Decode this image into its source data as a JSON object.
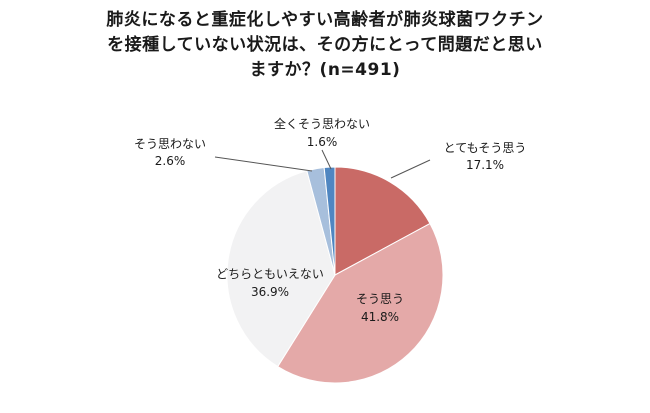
{
  "title": {
    "lines": [
      "肺炎になると重症化しやすい高齢者が肺炎球菌ワクチン",
      "を接種していない状況は、その方にとって問題だと思い",
      "ますか？(n=491)"
    ]
  },
  "chart_data": {
    "type": "pie",
    "title": "肺炎になると重症化しやすい高齢者が肺炎球菌ワクチンを接種していない状況は、その方にとって問題だと思いますか？(n=491)",
    "unit": "%",
    "start_angle_deg": 0,
    "direction": "clockwise",
    "slices": [
      {
        "label": "とてもそう思う",
        "value": 17.1,
        "value_text": "17.1%",
        "color": "#c96a66"
      },
      {
        "label": "そう思う",
        "value": 41.8,
        "value_text": "41.8%",
        "color": "#e4a9a8"
      },
      {
        "label": "どちらともいえない",
        "value": 36.9,
        "value_text": "36.9%",
        "color": "#f2f2f3"
      },
      {
        "label": "そう思わない",
        "value": 2.6,
        "value_text": "2.6%",
        "color": "#a7bfdc"
      },
      {
        "label": "全くそう思わない",
        "value": 1.6,
        "value_text": "1.6%",
        "color": "#4f86c1"
      }
    ],
    "legend": "none"
  }
}
